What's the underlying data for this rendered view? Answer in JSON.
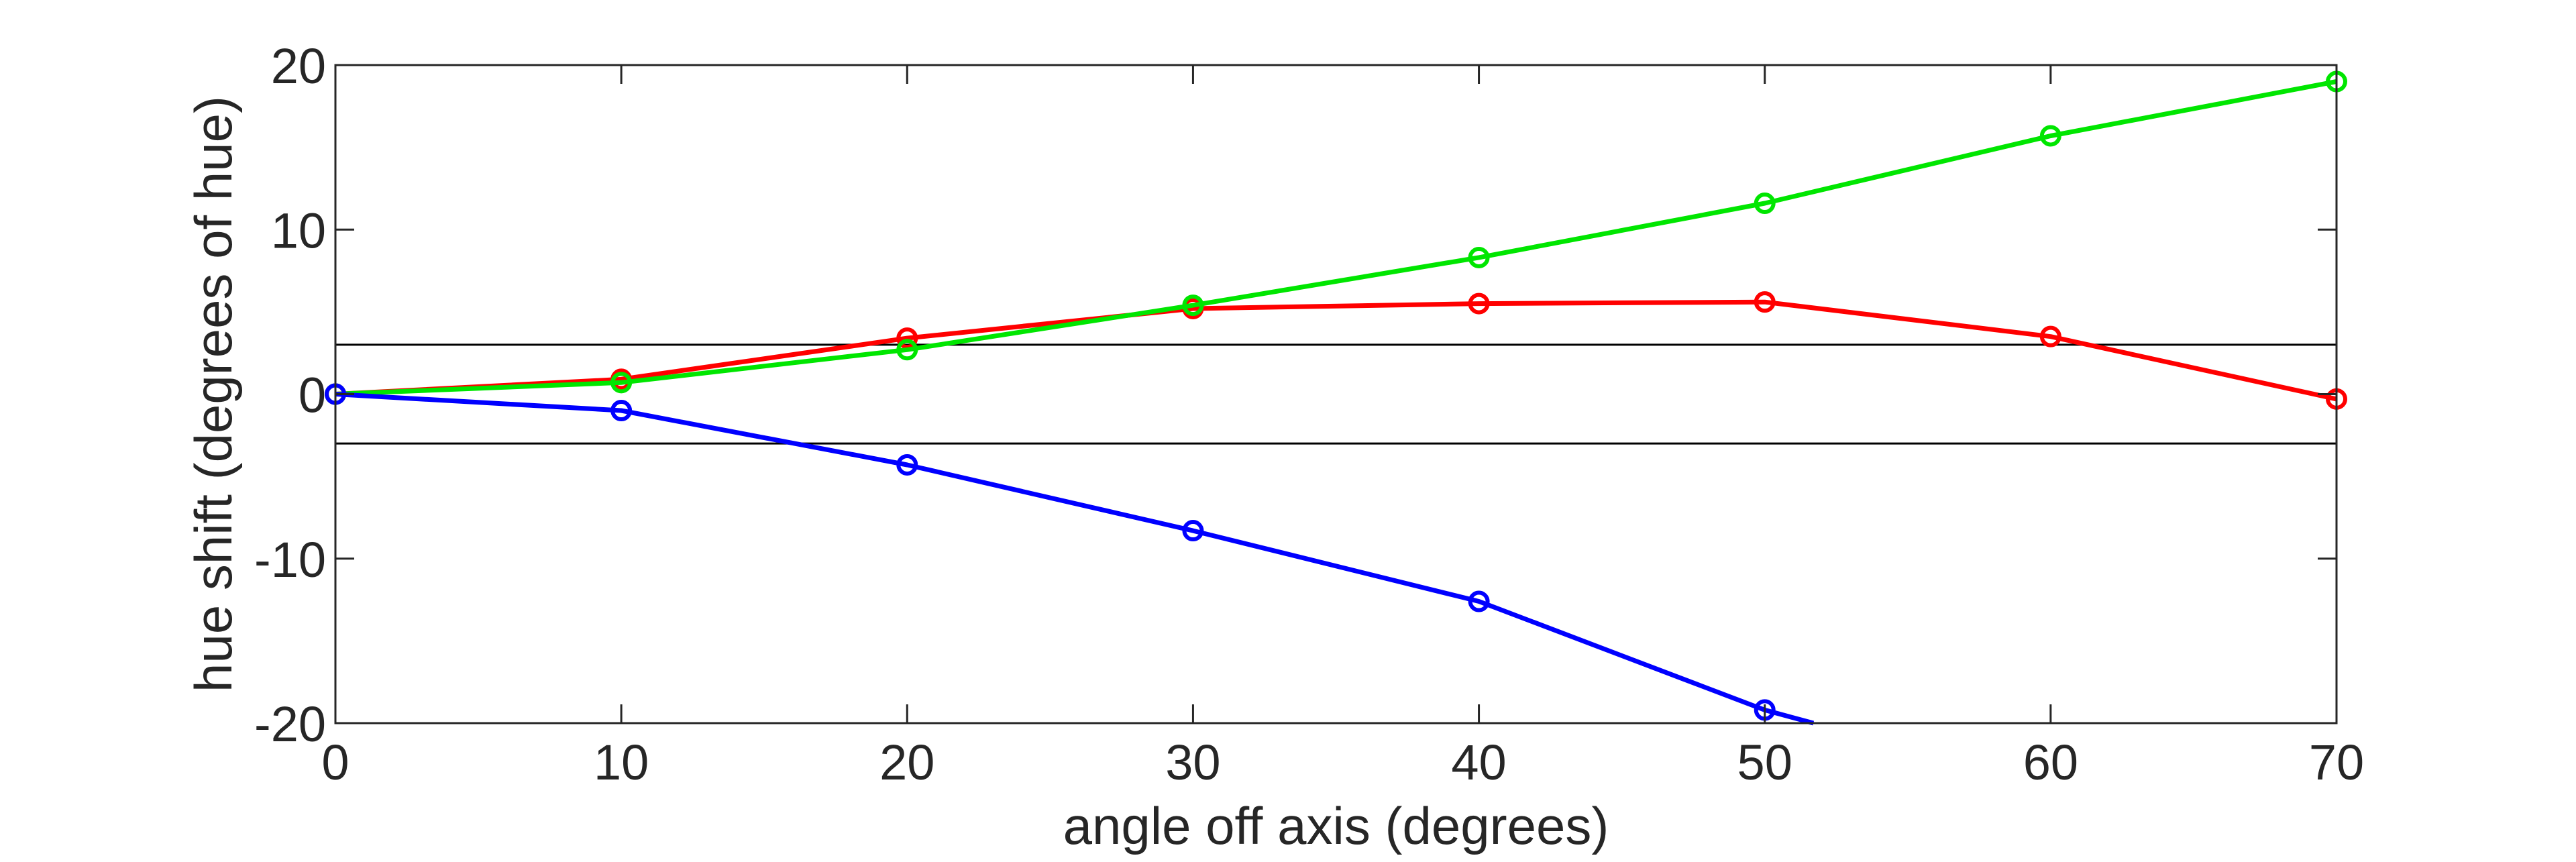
{
  "chart_data": {
    "type": "line",
    "title": "",
    "xlabel": "angle off axis (degrees)",
    "ylabel": "hue shift (degrees of hue)",
    "xlim": [
      0,
      70
    ],
    "ylim": [
      -20,
      20
    ],
    "xticks": [
      0,
      10,
      20,
      30,
      40,
      50,
      60,
      70
    ],
    "yticks": [
      20,
      10,
      0,
      -10,
      -20
    ],
    "xtick_labels": [
      "0",
      "10",
      "20",
      "30",
      "40",
      "50",
      "60",
      "70"
    ],
    "ytick_labels": [
      "20",
      "10",
      "0",
      "-10",
      "-20"
    ],
    "grid": false,
    "legend": "none",
    "reference_lines": [
      {
        "y": 3,
        "color": "#000000"
      },
      {
        "y": -3,
        "color": "#000000"
      }
    ],
    "series": [
      {
        "color": "#ff0000",
        "x": [
          0,
          10,
          20,
          30,
          40,
          50,
          60,
          70
        ],
        "y": [
          0,
          0.9,
          3.4,
          5.2,
          5.5,
          5.6,
          3.5,
          -0.3
        ]
      },
      {
        "color": "#00e600",
        "x": [
          0,
          10,
          20,
          30,
          40,
          50,
          60,
          70
        ],
        "y": [
          0,
          0.7,
          2.7,
          5.4,
          8.3,
          11.6,
          15.7,
          19.0
        ]
      },
      {
        "color": "#0000ff",
        "x": [
          0,
          10,
          20,
          30,
          40,
          50,
          51.7
        ],
        "y": [
          0,
          -1.0,
          -4.3,
          -8.3,
          -12.6,
          -19.2,
          -20.0
        ],
        "marker_count": 6
      }
    ]
  }
}
